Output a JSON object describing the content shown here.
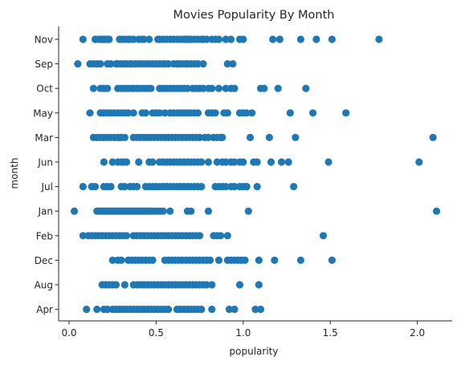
{
  "chart_data": {
    "type": "scatter",
    "title": "Movies Popularity By Month",
    "xlabel": "popularity",
    "ylabel": "month",
    "xlim": [
      -0.06,
      2.2
    ],
    "xticks": [
      0.0,
      0.5,
      1.0,
      1.5,
      2.0
    ],
    "xtick_labels": [
      "0.0",
      "0.5",
      "1.0",
      "1.5",
      "2.0"
    ],
    "grid": false,
    "legend": "none",
    "marker_color": "#1f77b4",
    "categories": [
      "Nov",
      "Sep",
      "Oct",
      "May",
      "Mar",
      "Jun",
      "Jul",
      "Jan",
      "Feb",
      "Dec",
      "Aug",
      "Apr"
    ],
    "series": [
      {
        "month": "Nov",
        "values": [
          0.08,
          0.15,
          0.17,
          0.18,
          0.19,
          0.2,
          0.21,
          0.22,
          0.23,
          0.29,
          0.3,
          0.32,
          0.34,
          0.35,
          0.37,
          0.4,
          0.42,
          0.43,
          0.46,
          0.51,
          0.52,
          0.54,
          0.56,
          0.58,
          0.6,
          0.62,
          0.64,
          0.66,
          0.67,
          0.68,
          0.69,
          0.7,
          0.72,
          0.74,
          0.76,
          0.77,
          0.79,
          0.82,
          0.84,
          0.86,
          0.9,
          0.93,
          0.98,
          1.0,
          1.17,
          1.21,
          1.33,
          1.42,
          1.51,
          1.78
        ]
      },
      {
        "month": "Sep",
        "values": [
          0.05,
          0.12,
          0.14,
          0.16,
          0.18,
          0.22,
          0.24,
          0.27,
          0.28,
          0.3,
          0.32,
          0.33,
          0.35,
          0.36,
          0.38,
          0.4,
          0.42,
          0.44,
          0.46,
          0.48,
          0.5,
          0.52,
          0.54,
          0.55,
          0.57,
          0.6,
          0.62,
          0.63,
          0.65,
          0.67,
          0.68,
          0.7,
          0.72,
          0.74,
          0.77,
          0.91,
          0.94
        ]
      },
      {
        "month": "Oct",
        "values": [
          0.14,
          0.18,
          0.2,
          0.22,
          0.28,
          0.3,
          0.32,
          0.34,
          0.36,
          0.37,
          0.39,
          0.41,
          0.43,
          0.45,
          0.47,
          0.52,
          0.54,
          0.56,
          0.58,
          0.6,
          0.62,
          0.64,
          0.66,
          0.68,
          0.71,
          0.73,
          0.75,
          0.77,
          0.8,
          0.82,
          0.86,
          0.9,
          0.93,
          0.95,
          1.1,
          1.12,
          1.2,
          1.36
        ]
      },
      {
        "month": "May",
        "values": [
          0.12,
          0.18,
          0.2,
          0.22,
          0.24,
          0.26,
          0.28,
          0.3,
          0.32,
          0.34,
          0.37,
          0.42,
          0.44,
          0.48,
          0.5,
          0.52,
          0.55,
          0.58,
          0.6,
          0.62,
          0.64,
          0.66,
          0.68,
          0.7,
          0.72,
          0.74,
          0.8,
          0.82,
          0.84,
          0.89,
          0.91,
          0.98,
          1.0,
          1.02,
          1.05,
          1.27,
          1.4,
          1.59
        ]
      },
      {
        "month": "Mar",
        "values": [
          0.14,
          0.16,
          0.18,
          0.2,
          0.22,
          0.24,
          0.26,
          0.28,
          0.29,
          0.3,
          0.32,
          0.37,
          0.39,
          0.41,
          0.43,
          0.45,
          0.47,
          0.49,
          0.51,
          0.53,
          0.55,
          0.57,
          0.59,
          0.61,
          0.63,
          0.65,
          0.67,
          0.69,
          0.71,
          0.73,
          0.75,
          0.78,
          0.8,
          0.83,
          0.85,
          0.87,
          0.88,
          1.04,
          1.15,
          1.3,
          2.09
        ]
      },
      {
        "month": "Jun",
        "values": [
          0.2,
          0.25,
          0.28,
          0.3,
          0.31,
          0.33,
          0.4,
          0.46,
          0.48,
          0.52,
          0.54,
          0.56,
          0.58,
          0.6,
          0.62,
          0.64,
          0.66,
          0.68,
          0.7,
          0.72,
          0.74,
          0.76,
          0.8,
          0.85,
          0.88,
          0.9,
          0.93,
          0.95,
          0.98,
          1.0,
          1.06,
          1.08,
          1.16,
          1.22,
          1.26,
          1.49,
          2.01
        ]
      },
      {
        "month": "Jul",
        "values": [
          0.08,
          0.13,
          0.15,
          0.2,
          0.22,
          0.24,
          0.3,
          0.32,
          0.35,
          0.37,
          0.39,
          0.44,
          0.46,
          0.48,
          0.5,
          0.52,
          0.54,
          0.56,
          0.58,
          0.6,
          0.62,
          0.64,
          0.66,
          0.68,
          0.7,
          0.72,
          0.74,
          0.76,
          0.84,
          0.86,
          0.88,
          0.9,
          0.93,
          0.95,
          0.98,
          1.0,
          1.02,
          1.08,
          1.29
        ]
      },
      {
        "month": "Jan",
        "values": [
          0.03,
          0.16,
          0.17,
          0.18,
          0.19,
          0.2,
          0.21,
          0.22,
          0.23,
          0.24,
          0.25,
          0.26,
          0.27,
          0.28,
          0.29,
          0.3,
          0.31,
          0.32,
          0.33,
          0.34,
          0.35,
          0.36,
          0.37,
          0.38,
          0.39,
          0.4,
          0.41,
          0.42,
          0.43,
          0.44,
          0.45,
          0.46,
          0.47,
          0.48,
          0.5,
          0.52,
          0.54,
          0.58,
          0.68,
          0.7,
          0.8,
          1.03,
          2.11
        ]
      },
      {
        "month": "Feb",
        "values": [
          0.08,
          0.11,
          0.13,
          0.15,
          0.17,
          0.19,
          0.21,
          0.23,
          0.25,
          0.27,
          0.29,
          0.31,
          0.33,
          0.37,
          0.39,
          0.41,
          0.43,
          0.45,
          0.47,
          0.49,
          0.51,
          0.53,
          0.55,
          0.57,
          0.59,
          0.61,
          0.63,
          0.65,
          0.67,
          0.69,
          0.71,
          0.73,
          0.75,
          0.83,
          0.85,
          0.87,
          0.91,
          1.46
        ]
      },
      {
        "month": "Dec",
        "values": [
          0.25,
          0.28,
          0.3,
          0.34,
          0.36,
          0.38,
          0.4,
          0.42,
          0.44,
          0.46,
          0.48,
          0.55,
          0.57,
          0.59,
          0.61,
          0.63,
          0.65,
          0.67,
          0.69,
          0.71,
          0.73,
          0.75,
          0.77,
          0.79,
          0.81,
          0.86,
          0.91,
          0.93,
          0.95,
          0.97,
          0.99,
          1.01,
          1.09,
          1.18,
          1.33,
          1.51
        ]
      },
      {
        "month": "Aug",
        "values": [
          0.19,
          0.21,
          0.23,
          0.25,
          0.27,
          0.32,
          0.37,
          0.39,
          0.41,
          0.43,
          0.45,
          0.47,
          0.49,
          0.51,
          0.53,
          0.55,
          0.57,
          0.59,
          0.61,
          0.63,
          0.65,
          0.67,
          0.69,
          0.71,
          0.73,
          0.75,
          0.77,
          0.79,
          0.82,
          0.98,
          1.09
        ]
      },
      {
        "month": "Apr",
        "values": [
          0.1,
          0.16,
          0.2,
          0.22,
          0.25,
          0.27,
          0.29,
          0.31,
          0.33,
          0.35,
          0.37,
          0.39,
          0.41,
          0.43,
          0.45,
          0.47,
          0.49,
          0.51,
          0.53,
          0.55,
          0.57,
          0.62,
          0.64,
          0.66,
          0.68,
          0.7,
          0.72,
          0.74,
          0.76,
          0.82,
          0.92,
          0.95,
          1.07,
          1.1
        ]
      }
    ]
  }
}
